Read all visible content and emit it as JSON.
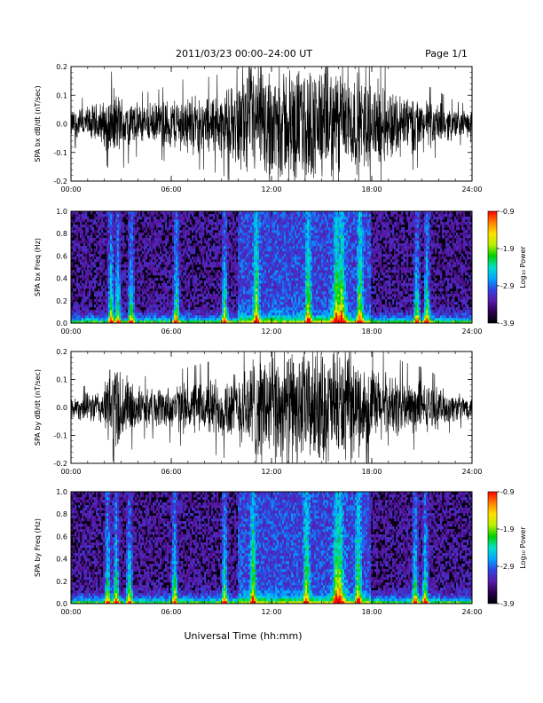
{
  "header": {
    "title": "2011/03/23  00:00–24:00 UT",
    "page": "Page 1/1"
  },
  "x_axis_label": "Universal Time (hh:mm)",
  "colorbar": {
    "label": "Log₁₀ Power",
    "ticks": [
      "-0.9",
      "-1.9",
      "-2.9",
      "-3.9"
    ],
    "range": [
      -3.9,
      -0.9
    ],
    "colors": [
      "#000000",
      "#2a0050",
      "#5a1aa8",
      "#2f44e0",
      "#00a8ff",
      "#00e0c8",
      "#00d000",
      "#b8f000",
      "#ffe000",
      "#ff8000",
      "#ff0000"
    ]
  },
  "chart_data": [
    {
      "id": "bx_dbdt",
      "type": "line",
      "ylabel": "SPA bx dB/dt (nT/sec)",
      "xlim": [
        0,
        24
      ],
      "ylim": [
        -0.2,
        0.2
      ],
      "x_ticks": [
        "00:00",
        "06:00",
        "12:00",
        "18:00",
        "24:00"
      ],
      "y_ticks": [
        "-0.2",
        "-0.1",
        "0.0",
        "0.1",
        "0.2"
      ],
      "color": "#000000",
      "envelope": {
        "hours": [
          0,
          1,
          2,
          2.5,
          3,
          4,
          5,
          6,
          7,
          8,
          9,
          10,
          10.5,
          11,
          12,
          13,
          14,
          15,
          16,
          17,
          18,
          19,
          20,
          21,
          22,
          23,
          24
        ],
        "amplitude": [
          0.05,
          0.06,
          0.08,
          0.12,
          0.1,
          0.07,
          0.07,
          0.09,
          0.1,
          0.1,
          0.11,
          0.14,
          0.2,
          0.2,
          0.2,
          0.2,
          0.2,
          0.2,
          0.2,
          0.17,
          0.15,
          0.13,
          0.11,
          0.09,
          0.07,
          0.05,
          0.04
        ]
      }
    },
    {
      "id": "bx_freq",
      "type": "heatmap",
      "ylabel": "SPA bx Freq (Hz)",
      "xlim": [
        0,
        24
      ],
      "ylim": [
        0,
        1.0
      ],
      "x_ticks": [
        "00:00",
        "06:00",
        "12:00",
        "18:00",
        "24:00"
      ],
      "y_ticks": [
        "0.0",
        "0.2",
        "0.4",
        "0.6",
        "0.8",
        "1.0"
      ],
      "zlim": [
        -3.9,
        -0.9
      ],
      "bright_bands_hours": [
        2.4,
        2.8,
        3.6,
        6.3,
        9.2,
        11.1,
        14.2,
        15.9,
        16.2,
        17.3,
        20.7,
        21.3
      ]
    },
    {
      "id": "by_dbdt",
      "type": "line",
      "ylabel": "SPA by dB/dt (nT/sec)",
      "xlim": [
        0,
        24
      ],
      "ylim": [
        -0.2,
        0.2
      ],
      "x_ticks": [
        "00:00",
        "06:00",
        "12:00",
        "18:00",
        "24:00"
      ],
      "y_ticks": [
        "-0.2",
        "-0.1",
        "0.0",
        "0.1",
        "0.2"
      ],
      "color": "#000000",
      "envelope": {
        "hours": [
          0,
          1,
          2,
          2.5,
          3,
          4,
          5,
          6,
          7,
          8,
          9,
          10,
          10.5,
          11,
          12,
          13,
          14,
          15,
          16,
          17,
          18,
          19,
          20,
          21,
          22,
          23,
          24
        ],
        "amplitude": [
          0.04,
          0.05,
          0.07,
          0.2,
          0.14,
          0.07,
          0.07,
          0.08,
          0.09,
          0.1,
          0.11,
          0.13,
          0.16,
          0.2,
          0.2,
          0.2,
          0.2,
          0.2,
          0.2,
          0.17,
          0.14,
          0.12,
          0.1,
          0.09,
          0.07,
          0.05,
          0.04
        ]
      }
    },
    {
      "id": "by_freq",
      "type": "heatmap",
      "ylabel": "SPA by Freq (Hz)",
      "xlim": [
        0,
        24
      ],
      "ylim": [
        0,
        1.0
      ],
      "x_ticks": [
        "00:00",
        "06:00",
        "12:00",
        "18:00",
        "24:00"
      ],
      "y_ticks": [
        "0.0",
        "0.2",
        "0.4",
        "0.6",
        "0.8",
        "1.0"
      ],
      "zlim": [
        -3.9,
        -0.9
      ],
      "bright_bands_hours": [
        2.2,
        2.7,
        3.5,
        6.2,
        9.2,
        10.9,
        14.1,
        15.9,
        16.1,
        17.2,
        20.6,
        21.2
      ]
    }
  ]
}
